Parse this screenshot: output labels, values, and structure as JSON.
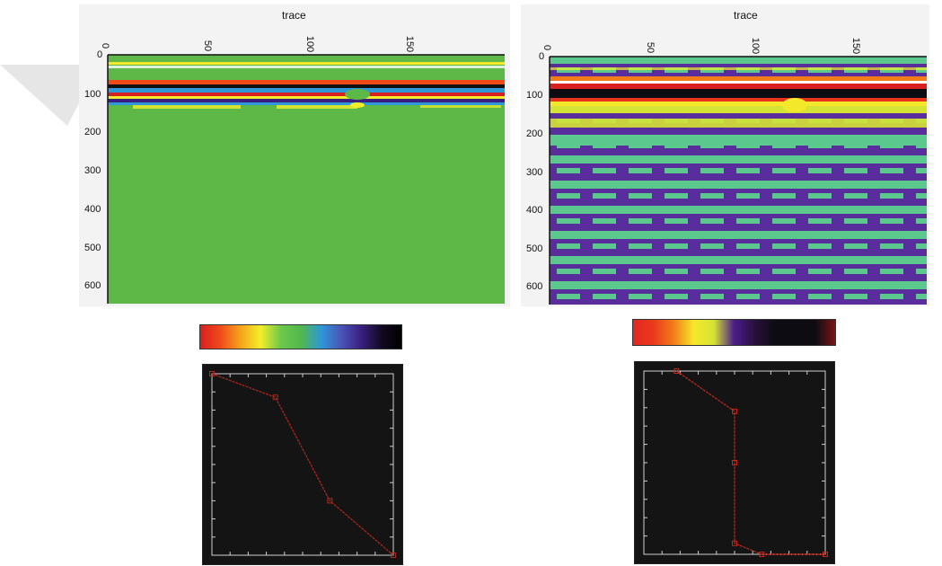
{
  "panels": [
    {
      "axis_title": "trace",
      "x_ticks": [
        "0",
        "50",
        "100",
        "150"
      ],
      "y_ticks": [
        "0",
        "100",
        "200",
        "300",
        "400",
        "500",
        "600"
      ],
      "background_color": "#5db848",
      "colorbar_stops": [
        "#d91f1f",
        "#f04a1a",
        "#f5a31a",
        "#f2ef2a",
        "#6cc84a",
        "#52b84e",
        "#2e98d8",
        "#4a55b8",
        "#3a1f80",
        "#120a20",
        "#000000"
      ]
    },
    {
      "axis_title": "trace",
      "x_ticks": [
        "0",
        "50",
        "100",
        "150"
      ],
      "y_ticks": [
        "0",
        "100",
        "200",
        "300",
        "400",
        "500",
        "600"
      ],
      "background_color": "#5a2d9c",
      "colorbar_stops": [
        "#e52620",
        "#e83a1c",
        "#f27d18",
        "#f4e82a",
        "#d5e335",
        "#4b1c8a",
        "#2a103c",
        "#0d0c12",
        "#0d0c12",
        "#0d0c12",
        "#7a1414"
      ]
    }
  ],
  "opacity_curves": [
    {
      "line_color": "#b0281c",
      "points": [
        [
          0,
          1.0
        ],
        [
          0.35,
          0.87
        ],
        [
          0.65,
          0.3
        ],
        [
          1.0,
          0.0
        ]
      ]
    },
    {
      "line_color": "#c4281c",
      "points": [
        [
          0.18,
          1.0
        ],
        [
          0.5,
          0.78
        ],
        [
          0.5,
          0.5
        ],
        [
          0.5,
          0.06
        ],
        [
          0.65,
          0.0
        ],
        [
          1.0,
          0.0
        ]
      ]
    }
  ]
}
